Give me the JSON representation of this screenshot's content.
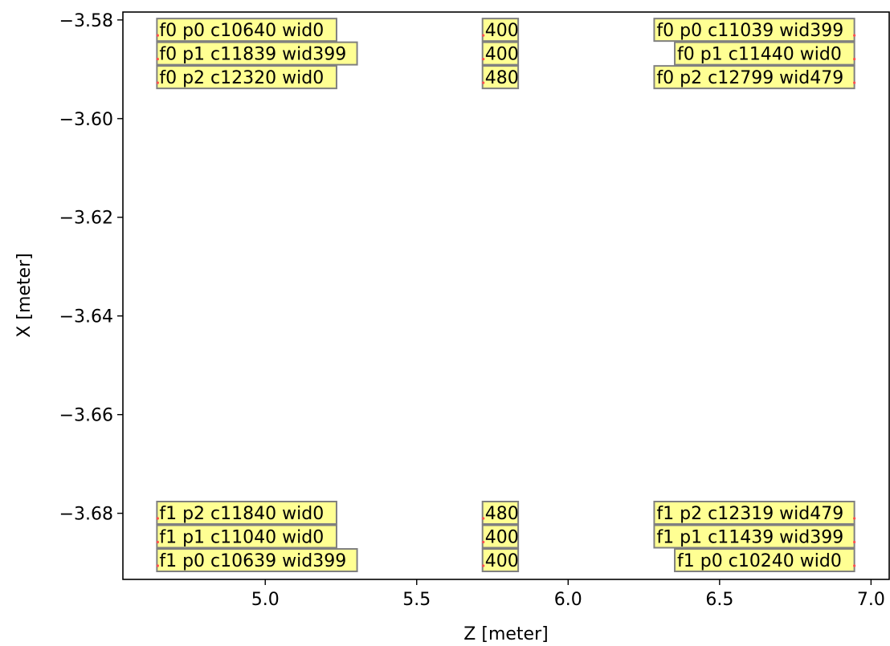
{
  "chart_data": {
    "type": "scatter",
    "title": "",
    "xlabel": "Z [meter]",
    "ylabel": "X [meter]",
    "xlim": [
      4.53,
      7.06
    ],
    "ylim": [
      -3.6934,
      -3.5784
    ],
    "xticks": [
      5.0,
      5.5,
      6.0,
      6.5,
      7.0
    ],
    "xtick_labels": [
      "5.0",
      "5.5",
      "6.0",
      "6.5",
      "7.0"
    ],
    "yticks": [
      -3.58,
      -3.6,
      -3.62,
      -3.64,
      -3.66,
      -3.68
    ],
    "ytick_labels": [
      "−3.58",
      "−3.60",
      "−3.62",
      "−3.64",
      "−3.66",
      "−3.68"
    ],
    "grid": false,
    "colors": {
      "label_fill": "#ffff80",
      "label_edge": "#808080",
      "point": "#ff5050"
    },
    "points": [
      {
        "z": 4.645,
        "x": -3.582,
        "label": "f0 p0 c10640 wid0",
        "align": "left"
      },
      {
        "z": 4.645,
        "x": -3.5868,
        "label": "f0 p1 c11839 wid399",
        "align": "left"
      },
      {
        "z": 4.645,
        "x": -3.5916,
        "label": "f0 p2 c12320 wid0",
        "align": "left"
      },
      {
        "z": 5.72,
        "x": -3.582,
        "label": "400",
        "align": "left"
      },
      {
        "z": 5.72,
        "x": -3.5868,
        "label": "400",
        "align": "left"
      },
      {
        "z": 5.72,
        "x": -3.5916,
        "label": "480",
        "align": "left"
      },
      {
        "z": 6.945,
        "x": -3.582,
        "label": "f0 p0 c11039 wid399",
        "align": "right"
      },
      {
        "z": 6.945,
        "x": -3.5868,
        "label": "f0 p1 c11440 wid0",
        "align": "right"
      },
      {
        "z": 6.945,
        "x": -3.5916,
        "label": "f0 p2 c12799 wid479",
        "align": "right"
      },
      {
        "z": 4.645,
        "x": -3.6799,
        "label": "f1 p2 c11840 wid0",
        "align": "left"
      },
      {
        "z": 4.645,
        "x": -3.6847,
        "label": "f1 p1 c11040 wid0",
        "align": "left"
      },
      {
        "z": 4.645,
        "x": -3.6895,
        "label": "f1 p0 c10639 wid399",
        "align": "left"
      },
      {
        "z": 5.72,
        "x": -3.6799,
        "label": "480",
        "align": "left"
      },
      {
        "z": 5.72,
        "x": -3.6847,
        "label": "400",
        "align": "left"
      },
      {
        "z": 5.72,
        "x": -3.6895,
        "label": "400",
        "align": "left"
      },
      {
        "z": 6.945,
        "x": -3.6799,
        "label": "f1 p2 c12319 wid479",
        "align": "right"
      },
      {
        "z": 6.945,
        "x": -3.6847,
        "label": "f1 p1 c11439 wid399",
        "align": "right"
      },
      {
        "z": 6.945,
        "x": -3.6895,
        "label": "f1 p0 c10240 wid0",
        "align": "right"
      }
    ]
  }
}
